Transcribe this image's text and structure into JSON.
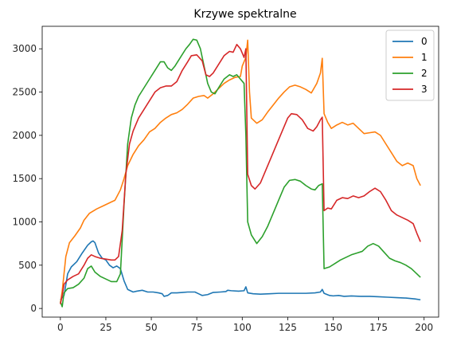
{
  "chart_data": {
    "type": "line",
    "title": "Krzywe spektralne",
    "xlabel": "",
    "ylabel": "",
    "xlim": [
      -10,
      208
    ],
    "ylim": [
      -100,
      3260
    ],
    "x_ticks": [
      0,
      25,
      50,
      75,
      100,
      125,
      150,
      175,
      200
    ],
    "y_ticks": [
      0,
      500,
      1000,
      1500,
      2000,
      2500,
      3000
    ],
    "grid": false,
    "legend_position": "upper-right",
    "series": [
      {
        "name": "0",
        "color": "#1f77b4",
        "points": [
          [
            0,
            100
          ],
          [
            2,
            150
          ],
          [
            4,
            400
          ],
          [
            6,
            480
          ],
          [
            9,
            540
          ],
          [
            12,
            640
          ],
          [
            15,
            730
          ],
          [
            17,
            770
          ],
          [
            18,
            780
          ],
          [
            19,
            760
          ],
          [
            21,
            640
          ],
          [
            23,
            580
          ],
          [
            25,
            560
          ],
          [
            27,
            500
          ],
          [
            29,
            470
          ],
          [
            31,
            490
          ],
          [
            33,
            460
          ],
          [
            35,
            320
          ],
          [
            37,
            220
          ],
          [
            40,
            190
          ],
          [
            42,
            200
          ],
          [
            45,
            210
          ],
          [
            48,
            190
          ],
          [
            51,
            190
          ],
          [
            54,
            180
          ],
          [
            56,
            170
          ],
          [
            57,
            140
          ],
          [
            59,
            150
          ],
          [
            61,
            180
          ],
          [
            64,
            180
          ],
          [
            67,
            185
          ],
          [
            70,
            190
          ],
          [
            74,
            190
          ],
          [
            76,
            170
          ],
          [
            78,
            150
          ],
          [
            81,
            160
          ],
          [
            84,
            185
          ],
          [
            88,
            190
          ],
          [
            91,
            195
          ],
          [
            92,
            210
          ],
          [
            94,
            205
          ],
          [
            98,
            200
          ],
          [
            101,
            205
          ],
          [
            102,
            250
          ],
          [
            103,
            180
          ],
          [
            106,
            170
          ],
          [
            110,
            165
          ],
          [
            115,
            170
          ],
          [
            120,
            175
          ],
          [
            125,
            175
          ],
          [
            130,
            175
          ],
          [
            135,
            175
          ],
          [
            140,
            180
          ],
          [
            143,
            190
          ],
          [
            144,
            220
          ],
          [
            145,
            175
          ],
          [
            148,
            150
          ],
          [
            150,
            145
          ],
          [
            153,
            150
          ],
          [
            156,
            140
          ],
          [
            160,
            145
          ],
          [
            165,
            140
          ],
          [
            170,
            140
          ],
          [
            175,
            135
          ],
          [
            180,
            130
          ],
          [
            185,
            125
          ],
          [
            190,
            120
          ],
          [
            195,
            110
          ],
          [
            198,
            100
          ]
        ]
      },
      {
        "name": "1",
        "color": "#ff7f0e",
        "points": [
          [
            0,
            60
          ],
          [
            1,
            200
          ],
          [
            2,
            400
          ],
          [
            3,
            600
          ],
          [
            5,
            760
          ],
          [
            8,
            840
          ],
          [
            11,
            930
          ],
          [
            13,
            1020
          ],
          [
            16,
            1100
          ],
          [
            20,
            1150
          ],
          [
            24,
            1190
          ],
          [
            28,
            1230
          ],
          [
            30,
            1250
          ],
          [
            33,
            1370
          ],
          [
            35,
            1500
          ],
          [
            37,
            1650
          ],
          [
            40,
            1780
          ],
          [
            43,
            1880
          ],
          [
            46,
            1950
          ],
          [
            49,
            2040
          ],
          [
            52,
            2080
          ],
          [
            55,
            2150
          ],
          [
            58,
            2200
          ],
          [
            61,
            2240
          ],
          [
            64,
            2260
          ],
          [
            67,
            2300
          ],
          [
            70,
            2360
          ],
          [
            73,
            2430
          ],
          [
            76,
            2450
          ],
          [
            79,
            2460
          ],
          [
            81,
            2430
          ],
          [
            84,
            2480
          ],
          [
            87,
            2540
          ],
          [
            90,
            2600
          ],
          [
            93,
            2640
          ],
          [
            96,
            2670
          ],
          [
            99,
            2680
          ],
          [
            100,
            2800
          ],
          [
            102,
            2900
          ],
          [
            103,
            3100
          ],
          [
            104,
            2500
          ],
          [
            105,
            2200
          ],
          [
            108,
            2140
          ],
          [
            111,
            2180
          ],
          [
            114,
            2270
          ],
          [
            117,
            2350
          ],
          [
            120,
            2430
          ],
          [
            123,
            2500
          ],
          [
            126,
            2560
          ],
          [
            129,
            2580
          ],
          [
            132,
            2560
          ],
          [
            135,
            2530
          ],
          [
            138,
            2490
          ],
          [
            141,
            2600
          ],
          [
            143,
            2720
          ],
          [
            144,
            2890
          ],
          [
            145,
            2250
          ],
          [
            147,
            2150
          ],
          [
            149,
            2080
          ],
          [
            152,
            2120
          ],
          [
            155,
            2150
          ],
          [
            158,
            2120
          ],
          [
            161,
            2140
          ],
          [
            164,
            2080
          ],
          [
            167,
            2020
          ],
          [
            170,
            2030
          ],
          [
            173,
            2040
          ],
          [
            176,
            2000
          ],
          [
            179,
            1900
          ],
          [
            182,
            1800
          ],
          [
            185,
            1700
          ],
          [
            188,
            1650
          ],
          [
            191,
            1680
          ],
          [
            194,
            1650
          ],
          [
            196,
            1500
          ],
          [
            198,
            1420
          ]
        ]
      },
      {
        "name": "2",
        "color": "#2ca02c",
        "points": [
          [
            0,
            80
          ],
          [
            1,
            20
          ],
          [
            2,
            180
          ],
          [
            4,
            230
          ],
          [
            7,
            240
          ],
          [
            10,
            280
          ],
          [
            13,
            350
          ],
          [
            15,
            460
          ],
          [
            17,
            490
          ],
          [
            19,
            420
          ],
          [
            22,
            370
          ],
          [
            25,
            340
          ],
          [
            28,
            310
          ],
          [
            31,
            310
          ],
          [
            33,
            400
          ],
          [
            35,
            1200
          ],
          [
            37,
            1900
          ],
          [
            39,
            2200
          ],
          [
            41,
            2350
          ],
          [
            43,
            2450
          ],
          [
            46,
            2550
          ],
          [
            49,
            2650
          ],
          [
            52,
            2750
          ],
          [
            55,
            2850
          ],
          [
            57,
            2850
          ],
          [
            59,
            2780
          ],
          [
            61,
            2750
          ],
          [
            63,
            2800
          ],
          [
            66,
            2900
          ],
          [
            69,
            3000
          ],
          [
            71,
            3050
          ],
          [
            73,
            3110
          ],
          [
            75,
            3100
          ],
          [
            77,
            3000
          ],
          [
            79,
            2800
          ],
          [
            81,
            2600
          ],
          [
            83,
            2500
          ],
          [
            85,
            2480
          ],
          [
            87,
            2550
          ],
          [
            90,
            2650
          ],
          [
            93,
            2700
          ],
          [
            95,
            2680
          ],
          [
            97,
            2700
          ],
          [
            99,
            2650
          ],
          [
            101,
            2600
          ],
          [
            102,
            2000
          ],
          [
            103,
            1000
          ],
          [
            105,
            850
          ],
          [
            108,
            750
          ],
          [
            111,
            830
          ],
          [
            114,
            950
          ],
          [
            117,
            1100
          ],
          [
            120,
            1250
          ],
          [
            123,
            1400
          ],
          [
            126,
            1480
          ],
          [
            129,
            1490
          ],
          [
            132,
            1470
          ],
          [
            135,
            1420
          ],
          [
            138,
            1380
          ],
          [
            140,
            1370
          ],
          [
            142,
            1420
          ],
          [
            144,
            1440
          ],
          [
            145,
            460
          ],
          [
            148,
            480
          ],
          [
            151,
            520
          ],
          [
            154,
            560
          ],
          [
            157,
            590
          ],
          [
            160,
            620
          ],
          [
            163,
            640
          ],
          [
            166,
            660
          ],
          [
            169,
            720
          ],
          [
            172,
            750
          ],
          [
            175,
            720
          ],
          [
            178,
            650
          ],
          [
            181,
            580
          ],
          [
            184,
            550
          ],
          [
            187,
            530
          ],
          [
            190,
            500
          ],
          [
            193,
            460
          ],
          [
            196,
            400
          ],
          [
            198,
            360
          ]
        ]
      },
      {
        "name": "3",
        "color": "#d62728",
        "points": [
          [
            0,
            50
          ],
          [
            1,
            150
          ],
          [
            2,
            280
          ],
          [
            4,
            330
          ],
          [
            7,
            370
          ],
          [
            10,
            400
          ],
          [
            13,
            500
          ],
          [
            15,
            580
          ],
          [
            17,
            620
          ],
          [
            19,
            600
          ],
          [
            22,
            580
          ],
          [
            25,
            570
          ],
          [
            28,
            560
          ],
          [
            30,
            560
          ],
          [
            32,
            600
          ],
          [
            34,
            900
          ],
          [
            36,
            1550
          ],
          [
            38,
            1900
          ],
          [
            40,
            2050
          ],
          [
            43,
            2200
          ],
          [
            46,
            2300
          ],
          [
            49,
            2400
          ],
          [
            52,
            2500
          ],
          [
            55,
            2550
          ],
          [
            58,
            2570
          ],
          [
            61,
            2570
          ],
          [
            64,
            2620
          ],
          [
            67,
            2750
          ],
          [
            70,
            2850
          ],
          [
            72,
            2920
          ],
          [
            75,
            2930
          ],
          [
            78,
            2860
          ],
          [
            80,
            2700
          ],
          [
            82,
            2680
          ],
          [
            84,
            2720
          ],
          [
            87,
            2820
          ],
          [
            90,
            2920
          ],
          [
            93,
            2970
          ],
          [
            95,
            2960
          ],
          [
            97,
            3050
          ],
          [
            99,
            3000
          ],
          [
            101,
            2900
          ],
          [
            102,
            3000
          ],
          [
            103,
            1550
          ],
          [
            105,
            1420
          ],
          [
            107,
            1380
          ],
          [
            110,
            1450
          ],
          [
            113,
            1600
          ],
          [
            116,
            1750
          ],
          [
            119,
            1900
          ],
          [
            122,
            2050
          ],
          [
            125,
            2200
          ],
          [
            127,
            2250
          ],
          [
            130,
            2240
          ],
          [
            133,
            2180
          ],
          [
            136,
            2080
          ],
          [
            139,
            2050
          ],
          [
            141,
            2100
          ],
          [
            143,
            2180
          ],
          [
            144,
            2210
          ],
          [
            145,
            1130
          ],
          [
            147,
            1160
          ],
          [
            149,
            1150
          ],
          [
            152,
            1250
          ],
          [
            155,
            1280
          ],
          [
            158,
            1270
          ],
          [
            161,
            1300
          ],
          [
            164,
            1280
          ],
          [
            167,
            1300
          ],
          [
            170,
            1350
          ],
          [
            173,
            1390
          ],
          [
            176,
            1350
          ],
          [
            179,
            1250
          ],
          [
            182,
            1130
          ],
          [
            185,
            1080
          ],
          [
            188,
            1050
          ],
          [
            191,
            1020
          ],
          [
            194,
            980
          ],
          [
            196,
            870
          ],
          [
            198,
            770
          ]
        ]
      }
    ]
  }
}
